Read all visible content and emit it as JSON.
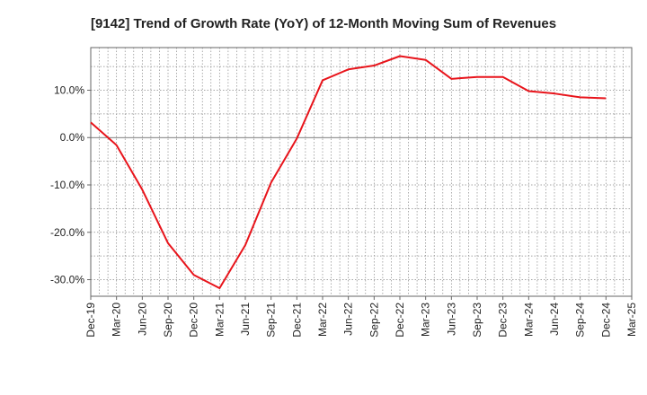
{
  "chart_data": {
    "type": "line",
    "title": "[9142]  Trend of Growth Rate (YoY) of 12-Month Moving Sum of Revenues",
    "xlabel": "",
    "ylabel": "",
    "ylim": [
      -33.5,
      19
    ],
    "y_ticks": [
      10,
      0,
      -10,
      -20,
      -30
    ],
    "y_tick_labels": [
      "10.0%",
      "0.0%",
      "-10.0%",
      "-20.0%",
      "-30.0%"
    ],
    "x_tick_labels": [
      "Dec-19",
      "Mar-20",
      "Jun-20",
      "Sep-20",
      "Dec-20",
      "Mar-21",
      "Jun-21",
      "Sep-21",
      "Dec-21",
      "Mar-22",
      "Jun-22",
      "Sep-22",
      "Dec-22",
      "Mar-23",
      "Jun-23",
      "Sep-23",
      "Dec-23",
      "Mar-24",
      "Jun-24",
      "Sep-24",
      "Dec-24",
      "Mar-25"
    ],
    "grid": true,
    "colors": {
      "line": "#e8141b",
      "grid": "#888888",
      "axis": "#666666"
    },
    "series": [
      {
        "x": [
          "Dec-19",
          "Mar-20",
          "Jun-20",
          "Sep-20",
          "Dec-20",
          "Mar-21",
          "Jun-21",
          "Sep-21",
          "Dec-21",
          "Mar-22",
          "Jun-22",
          "Sep-22",
          "Dec-22",
          "Mar-23",
          "Jun-23",
          "Sep-23",
          "Dec-23",
          "Mar-24",
          "Jun-24",
          "Sep-24",
          "Dec-24"
        ],
        "values": [
          3.2,
          -1.6,
          -11.0,
          -22.3,
          -29.0,
          -31.8,
          -22.7,
          -9.5,
          -0.2,
          12.1,
          14.4,
          15.2,
          17.2,
          16.4,
          12.4,
          12.8,
          12.8,
          9.8,
          9.3,
          8.5,
          8.3
        ]
      }
    ]
  }
}
